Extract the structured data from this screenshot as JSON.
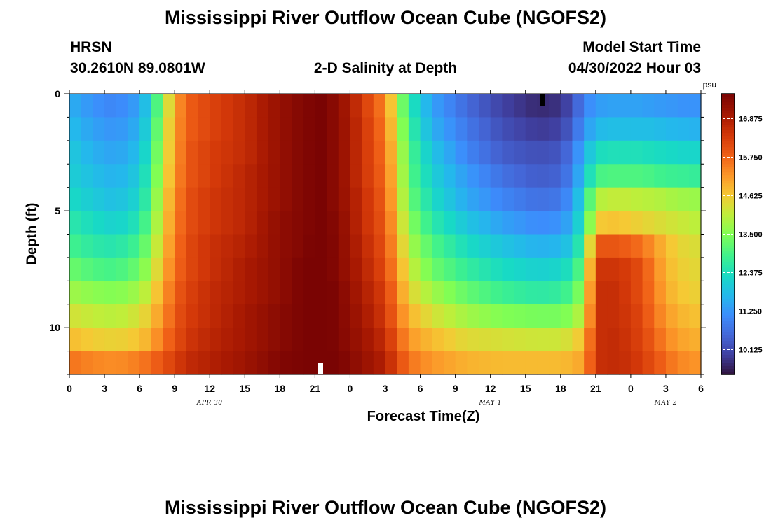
{
  "page": {
    "title_top": "Mississippi River Outflow Ocean Cube (NGOFS2)",
    "title_bottom": "Mississippi River Outflow Ocean Cube (NGOFS2)"
  },
  "station": {
    "code": "HRSN",
    "coords": "30.2610N  89.0801W"
  },
  "model": {
    "label": "Model Start Time",
    "start": "04/30/2022 Hour 03"
  },
  "chart_data": {
    "type": "heatmap",
    "title": "2-D Salinity at Depth",
    "xlabel": "Forecast Time(Z)",
    "ylabel": "Depth (ft)",
    "x_hours_from_apr30_00z": [
      0,
      54
    ],
    "x_step_hours": 1,
    "x_tick_labels": [
      "0",
      "3",
      "6",
      "9",
      "12",
      "15",
      "18",
      "21",
      "0",
      "3",
      "6",
      "9",
      "12",
      "15",
      "18",
      "21",
      "0",
      "3",
      "6"
    ],
    "date_labels": [
      {
        "text": "APR 30",
        "hour": 12
      },
      {
        "text": "MAY 1",
        "hour": 36
      },
      {
        "text": "MAY 2",
        "hour": 51
      }
    ],
    "depth_levels_ft": [
      0.5,
      1.5,
      2.5,
      3.5,
      4.5,
      5.5,
      6.5,
      7.5,
      8.5,
      9.5,
      10.5,
      11.5
    ],
    "ylim": [
      12,
      0
    ],
    "y_tick_labels": [
      "0",
      "5",
      "10"
    ],
    "y_tick_values": [
      0,
      5,
      10
    ],
    "colorbar": {
      "unit": "psu",
      "min": 9.4,
      "max": 17.6,
      "tick_labels": [
        "16.875",
        "15.750",
        "14.625",
        "13.500",
        "12.375",
        "11.250",
        "10.125"
      ],
      "tick_values": [
        16.875,
        15.75,
        14.625,
        13.5,
        12.375,
        11.25,
        10.125
      ]
    },
    "salinity_keyframes_psu": {
      "hours": [
        0,
        2,
        4,
        6,
        7,
        8,
        9,
        10,
        12,
        15,
        18,
        20,
        21.5,
        23,
        25,
        27,
        28,
        29,
        31,
        34,
        37,
        40,
        42,
        43,
        44,
        45,
        46,
        47,
        48,
        49,
        50,
        51,
        52,
        54
      ],
      "rows": [
        [
          11.6,
          11.2,
          11.0,
          11.4,
          12.2,
          13.8,
          15.0,
          15.8,
          16.2,
          16.6,
          17.2,
          17.5,
          17.6,
          17.3,
          16.4,
          15.4,
          14.0,
          12.6,
          11.4,
          10.6,
          10.0,
          9.7,
          9.8,
          10.2,
          11.0,
          11.3,
          11.4,
          11.4,
          11.4,
          11.4,
          11.3,
          11.3,
          11.2,
          11.2
        ],
        [
          11.8,
          11.4,
          11.2,
          11.6,
          12.4,
          14.0,
          15.1,
          15.8,
          16.2,
          16.6,
          17.2,
          17.5,
          17.6,
          17.3,
          16.5,
          15.5,
          14.2,
          12.8,
          11.6,
          10.8,
          10.2,
          9.9,
          10.0,
          10.5,
          11.2,
          11.7,
          11.8,
          11.8,
          11.8,
          11.8,
          11.8,
          11.7,
          11.7,
          11.6
        ],
        [
          12.0,
          11.6,
          11.4,
          11.8,
          12.6,
          14.1,
          15.1,
          15.9,
          16.3,
          16.6,
          17.2,
          17.5,
          17.6,
          17.3,
          16.5,
          15.6,
          14.4,
          13.0,
          11.9,
          11.0,
          10.4,
          10.2,
          10.3,
          10.8,
          11.6,
          12.3,
          12.4,
          12.4,
          12.4,
          12.4,
          12.3,
          12.3,
          12.2,
          12.2
        ],
        [
          12.1,
          11.8,
          11.6,
          12.0,
          12.8,
          14.2,
          15.2,
          15.9,
          16.3,
          16.7,
          17.2,
          17.5,
          17.6,
          17.3,
          16.5,
          15.7,
          14.5,
          13.1,
          12.1,
          11.3,
          10.7,
          10.4,
          10.5,
          11.0,
          11.9,
          12.9,
          13.0,
          13.0,
          13.0,
          13.0,
          12.9,
          12.8,
          12.8,
          12.7
        ],
        [
          12.3,
          12.0,
          11.8,
          12.2,
          13.0,
          14.4,
          15.3,
          16.0,
          16.4,
          16.7,
          17.2,
          17.5,
          17.6,
          17.3,
          16.6,
          15.8,
          14.6,
          13.3,
          12.3,
          11.5,
          11.0,
          10.7,
          10.8,
          11.3,
          12.3,
          13.9,
          14.1,
          14.1,
          14.1,
          14.0,
          14.0,
          13.9,
          13.8,
          13.7
        ],
        [
          12.6,
          12.3,
          12.1,
          12.5,
          13.3,
          14.5,
          15.4,
          16.0,
          16.4,
          16.7,
          17.3,
          17.5,
          17.6,
          17.4,
          16.6,
          15.9,
          14.8,
          13.6,
          12.6,
          11.9,
          11.4,
          11.1,
          11.2,
          11.6,
          12.6,
          14.6,
          14.7,
          14.7,
          14.6,
          14.5,
          14.4,
          14.3,
          14.2,
          14.0
        ],
        [
          12.9,
          12.6,
          12.5,
          12.9,
          13.6,
          14.7,
          15.5,
          16.1,
          16.5,
          16.8,
          17.3,
          17.5,
          17.7,
          17.4,
          16.7,
          16.0,
          15.0,
          13.9,
          13.0,
          12.3,
          11.9,
          11.6,
          11.7,
          12.0,
          13.0,
          15.9,
          16.0,
          15.9,
          15.8,
          15.6,
          15.2,
          14.8,
          14.5,
          14.3
        ],
        [
          13.3,
          13.0,
          12.9,
          13.3,
          13.9,
          14.9,
          15.6,
          16.1,
          16.5,
          16.9,
          17.3,
          17.6,
          17.7,
          17.4,
          16.8,
          16.1,
          15.2,
          14.2,
          13.3,
          12.7,
          12.3,
          12.1,
          12.2,
          12.5,
          13.4,
          16.4,
          16.5,
          16.4,
          16.3,
          16.0,
          15.4,
          14.9,
          14.6,
          14.4
        ],
        [
          13.8,
          13.6,
          13.5,
          13.8,
          14.3,
          15.1,
          15.8,
          16.2,
          16.6,
          16.9,
          17.3,
          17.6,
          17.7,
          17.5,
          16.9,
          16.3,
          15.4,
          14.5,
          13.8,
          13.2,
          12.8,
          12.6,
          12.7,
          13.0,
          13.8,
          16.5,
          16.6,
          16.5,
          16.3,
          16.0,
          15.5,
          15.0,
          14.7,
          14.5
        ],
        [
          14.3,
          14.1,
          14.0,
          14.3,
          14.7,
          15.3,
          15.9,
          16.3,
          16.6,
          17.0,
          17.4,
          17.6,
          17.7,
          17.5,
          17.0,
          16.4,
          15.6,
          14.9,
          14.3,
          13.8,
          13.5,
          13.4,
          13.4,
          13.6,
          14.2,
          16.5,
          16.6,
          16.5,
          16.4,
          16.1,
          15.6,
          15.2,
          14.9,
          14.7
        ],
        [
          14.8,
          14.6,
          14.5,
          14.7,
          15.0,
          15.6,
          16.0,
          16.4,
          16.7,
          17.0,
          17.4,
          17.6,
          17.7,
          17.5,
          17.1,
          16.6,
          15.9,
          15.2,
          14.8,
          14.4,
          14.3,
          14.2,
          14.2,
          14.4,
          14.8,
          16.5,
          16.6,
          16.6,
          16.4,
          16.2,
          15.8,
          15.4,
          15.1,
          14.9
        ],
        [
          15.6,
          15.4,
          15.3,
          15.5,
          15.7,
          16.0,
          16.3,
          16.6,
          16.8,
          17.1,
          17.5,
          17.6,
          17.7,
          17.6,
          17.2,
          16.8,
          16.2,
          15.6,
          15.2,
          14.9,
          14.8,
          14.8,
          14.8,
          14.9,
          15.1,
          16.5,
          16.6,
          16.6,
          16.5,
          16.3,
          16.0,
          15.7,
          15.4,
          15.2
        ]
      ]
    }
  }
}
